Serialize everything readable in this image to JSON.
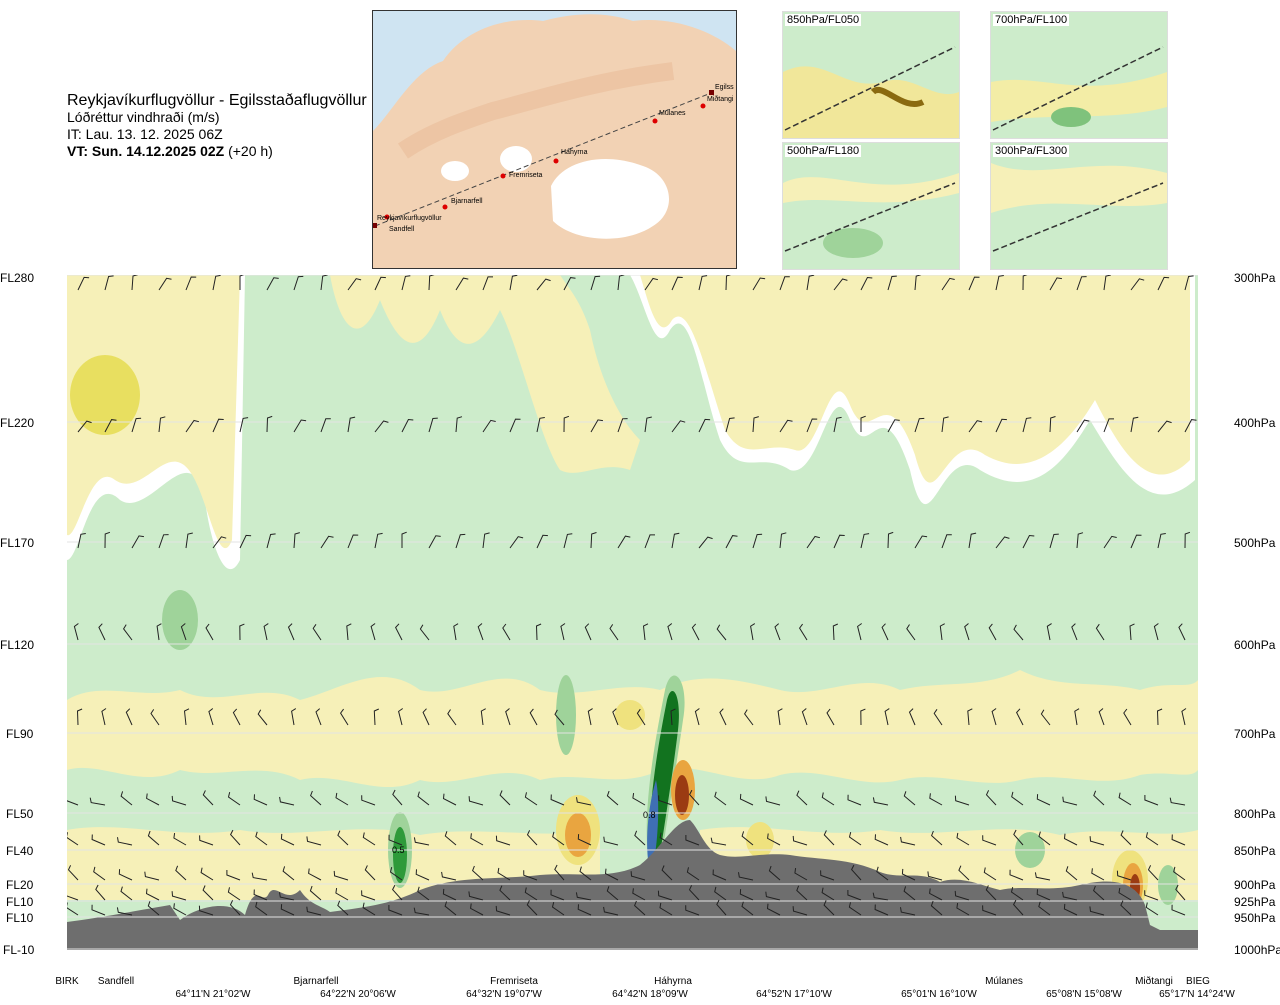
{
  "header": {
    "route": "Reykjavíkurflugvöllur - Egilsstaðaflugvöllur",
    "variable": "Lóðréttur vindhraði (m/s)",
    "it": "IT: Lau. 13. 12. 2025 06Z",
    "vt_bold": "VT: Sun. 14.12.2025 02Z",
    "vt_rest": " (+20 h)"
  },
  "map": {
    "labels": [
      "Reykjavíkurflugvöllur",
      "Sandfell",
      "Bjarnarfell",
      "Fremriseta",
      "Háhyrna",
      "Múlanes",
      "Egilss",
      "Miðtangi"
    ]
  },
  "mini_maps": [
    {
      "label": "850hPa/FL050"
    },
    {
      "label": "700hPa/FL100"
    },
    {
      "label": "500hPa/FL180"
    },
    {
      "label": "300hPa/FL300"
    }
  ],
  "chart_data": {
    "type": "heatmap",
    "title": "Lóðréttur vindhraði (m/s)",
    "left_axis_labels": [
      "FL280",
      "FL220",
      "FL170",
      "FL120",
      "FL90",
      "FL50",
      "FL40",
      "FL20",
      "FL10",
      "FL10",
      "FL-10"
    ],
    "right_axis_labels": [
      "300hPa",
      "400hPa",
      "500hPa",
      "600hPa",
      "700hPa",
      "800hPa",
      "850hPa",
      "900hPa",
      "925hPa",
      "950hPa",
      "1000hPa"
    ],
    "pressure_levels_hpa": [
      300,
      400,
      500,
      600,
      700,
      800,
      850,
      900,
      925,
      950,
      1000
    ],
    "locations": [
      "BIRK",
      "Sandfell",
      "Bjarnarfell",
      "Fremriseta",
      "Háhyrna",
      "Múlanes",
      "Miðtangi",
      "BIEG"
    ],
    "coordinates": [
      "64°11'N 21°02'W",
      "64°22'N 20°06'W",
      "64°32'N 19°07'W",
      "64°42'N 18°09'W",
      "64°52'N 17°10'W",
      "65°01'N 16°10'W",
      "65°08'N 15°08'W",
      "65°17'N 14°24'W"
    ],
    "value_labels": [
      {
        "text": "0.5",
        "location": "between Sandfell and Bjarnarfell",
        "level_hpa": 850
      },
      {
        "text": "0.8",
        "location": "Háhyrna",
        "level_hpa": 800
      }
    ],
    "colors": {
      "light_green": "#cdeccb",
      "mid_green": "#9fd39a",
      "dark_green": "#2e9a3a",
      "deep_green": "#12731f",
      "blue": "#3f6fb4",
      "pale_yellow": "#f6f0b8",
      "yellow": "#efe27e",
      "orange": "#e9a540",
      "brown": "#9b3b12",
      "white": "#ffffff",
      "terrain": "#6e6e6e"
    },
    "grid": true
  }
}
